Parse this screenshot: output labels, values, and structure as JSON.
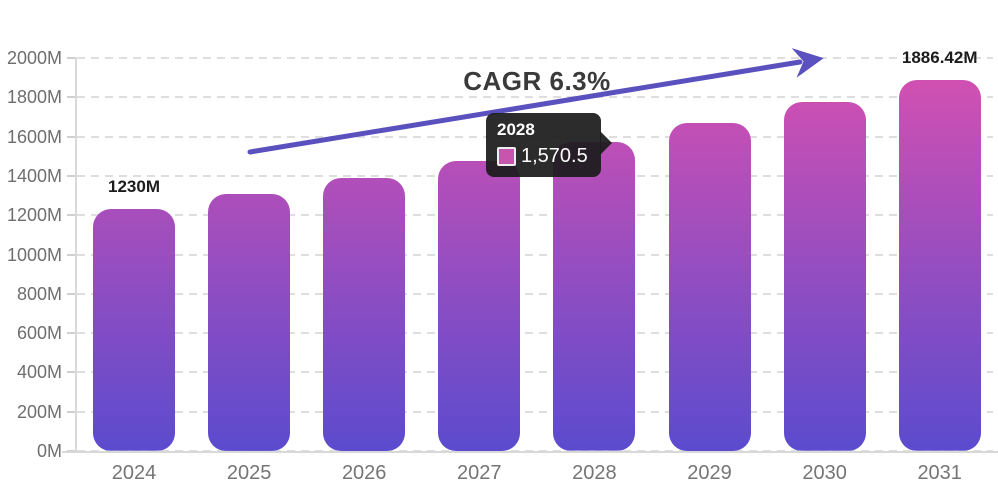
{
  "chart_data": {
    "type": "bar",
    "title": "CAGR 6.3%",
    "categories": [
      "2024",
      "2025",
      "2026",
      "2027",
      "2028",
      "2029",
      "2030",
      "2031"
    ],
    "values": [
      1230,
      1307.5,
      1389.9,
      1477.4,
      1570.5,
      1669.4,
      1774.6,
      1886.42
    ],
    "unit": "M",
    "xlabel": "",
    "ylabel": "",
    "ylim": [
      0,
      2000
    ],
    "ytick_step": 200,
    "ytick_labels": [
      "0M",
      "200M",
      "400M",
      "600M",
      "800M",
      "1000M",
      "1200M",
      "1400M",
      "1600M",
      "1800M",
      "2000M"
    ],
    "grid": true,
    "legend_position": "none",
    "annotations": [
      {
        "category": "2024",
        "text": "1230M"
      },
      {
        "category": "2031",
        "text": "1886.42M"
      }
    ],
    "bar_gradient_top": "#d850b0",
    "bar_gradient_bottom": "#5b4bce",
    "trend_arrow": {
      "label": "CAGR 6.3%",
      "color": "#5a50be"
    }
  },
  "tooltip": {
    "year": "2028",
    "value": "1,570.5",
    "swatch_color": "#c755ae",
    "background": "#1c1c1c"
  },
  "colors": {
    "axis_text": "#6e6e6e",
    "grid_line": "#dedede",
    "annotation_text": "#1c1c1c",
    "title_text": "#3a3a3a"
  }
}
